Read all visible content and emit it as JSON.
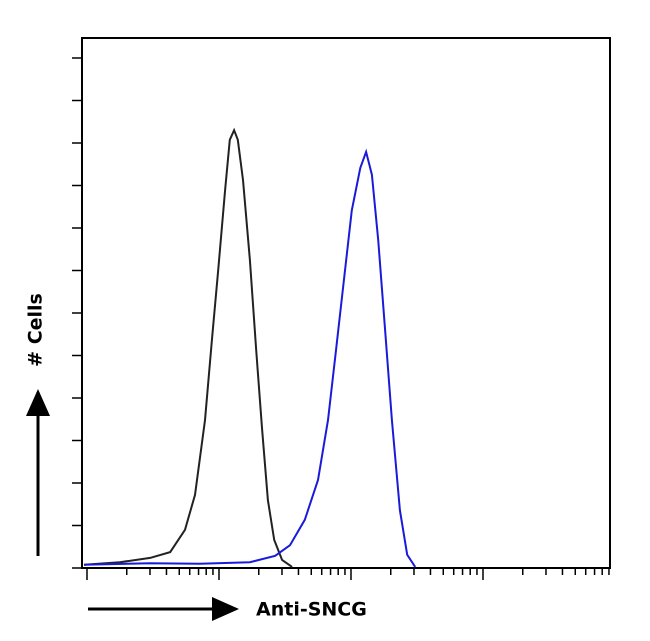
{
  "chart_data": {
    "type": "line",
    "x_label": "Anti-SNCG",
    "y_label": "# Cells",
    "xlim": [
      0,
      100
    ],
    "ylim": [
      0,
      100
    ],
    "series": [
      {
        "color": "#222222",
        "x": [
          0.4,
          7.2,
          12.9,
          16.7,
          19.5,
          21.4,
          23.3,
          24.6,
          25.8,
          27.1,
          28.0,
          28.8,
          29.5,
          30.5,
          31.8,
          33.0,
          34.1,
          35.2,
          36.4,
          37.9,
          39.8
        ],
        "values": [
          0.6,
          1.1,
          1.9,
          3.0,
          7.2,
          13.8,
          27.9,
          43.0,
          56.2,
          71.3,
          80.8,
          82.6,
          80.8,
          73.2,
          58.1,
          41.1,
          26.4,
          12.8,
          5.3,
          1.5,
          0.2
        ]
      },
      {
        "color": "#1a1adb",
        "x": [
          0.4,
          12.9,
          22.3,
          31.8,
          36.6,
          39.4,
          42.2,
          44.7,
          46.6,
          48.1,
          49.6,
          51.1,
          52.7,
          53.8,
          54.9,
          56.1,
          57.4,
          58.7,
          60.2,
          61.6,
          63.1
        ],
        "values": [
          0.6,
          0.9,
          0.8,
          1.1,
          2.3,
          4.3,
          9.1,
          16.6,
          27.9,
          41.1,
          54.3,
          67.5,
          75.5,
          78.5,
          74.2,
          61.9,
          44.9,
          27.9,
          10.9,
          2.5,
          0.2
        ]
      }
    ]
  }
}
